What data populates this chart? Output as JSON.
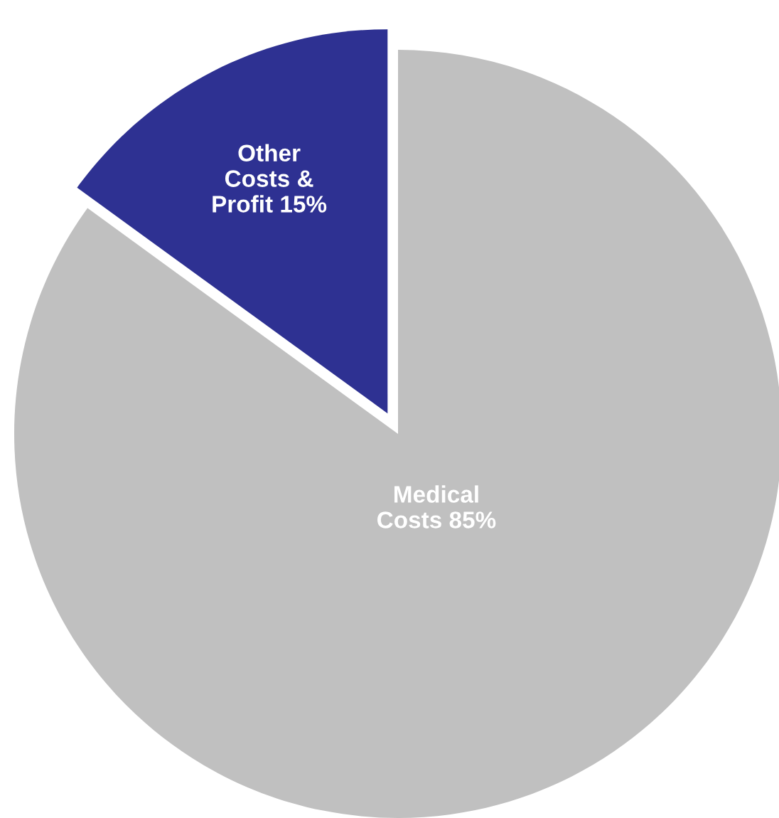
{
  "chart_data": {
    "type": "pie",
    "categories": [
      "Medical\nCosts",
      "Other\nCosts &\nProfit"
    ],
    "values": [
      85,
      15
    ],
    "value_labels": [
      "85%",
      "15%"
    ],
    "colors": [
      "#c0c0c0",
      "#2e3192"
    ],
    "legend": false
  }
}
